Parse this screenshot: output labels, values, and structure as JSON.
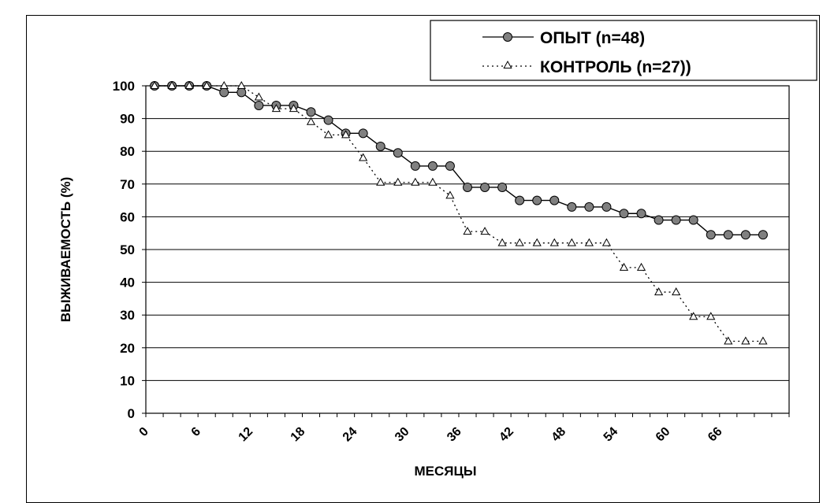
{
  "chart_data": {
    "type": "line",
    "xlabel": "МЕСЯЦЫ",
    "ylabel": "ВЫЖИВАЕМОСТЬ (%)",
    "xlim": [
      0,
      74
    ],
    "ylim": [
      0,
      100
    ],
    "x_ticks": [
      "0",
      "6",
      "12",
      "18",
      "24",
      "30",
      "36",
      "42",
      "48",
      "54",
      "60",
      "66"
    ],
    "y_ticks": [
      "0",
      "10",
      "20",
      "30",
      "40",
      "50",
      "60",
      "70",
      "80",
      "90",
      "100"
    ],
    "grid": "horizontal",
    "legend_position": "top-right",
    "series": [
      {
        "name": "ОПЫТ (n=48)",
        "style": "solid",
        "marker": "circle",
        "color": "#000000",
        "marker_fill": "#808080",
        "x": [
          1,
          3,
          5,
          7,
          9,
          11,
          13,
          15,
          17,
          19,
          21,
          23,
          25,
          27,
          29,
          31,
          33,
          35,
          37,
          39,
          41,
          43,
          45,
          47,
          49,
          51,
          53,
          55,
          57,
          59,
          61,
          63,
          65,
          67,
          69,
          71
        ],
        "y": [
          100,
          100,
          100,
          100,
          98,
          98,
          94,
          94,
          94,
          92,
          89.5,
          85.5,
          85.5,
          81.5,
          79.5,
          75.5,
          75.5,
          75.5,
          69,
          69,
          69,
          65,
          65,
          65,
          63,
          63,
          63,
          61,
          61,
          59,
          59,
          59,
          54.5,
          54.5,
          54.5,
          54.5
        ]
      },
      {
        "name": "КОНТРОЛЬ (n=27))",
        "style": "dotted",
        "marker": "triangle",
        "color": "#000000",
        "marker_fill": "#ffffff",
        "x": [
          1,
          3,
          5,
          7,
          9,
          11,
          13,
          15,
          17,
          19,
          21,
          23,
          25,
          27,
          29,
          31,
          33,
          35,
          37,
          39,
          41,
          43,
          45,
          47,
          49,
          51,
          53,
          55,
          57,
          59,
          61,
          63,
          65,
          67,
          69,
          71
        ],
        "y": [
          100,
          100,
          100,
          100,
          100,
          100,
          96.5,
          93,
          93,
          89,
          85,
          85,
          78,
          70.5,
          70.5,
          70.5,
          70.5,
          66.5,
          55.5,
          55.5,
          52,
          52,
          52,
          52,
          52,
          52,
          52,
          44.5,
          44.5,
          37,
          37,
          29.5,
          29.5,
          22,
          22,
          22
        ]
      }
    ]
  }
}
